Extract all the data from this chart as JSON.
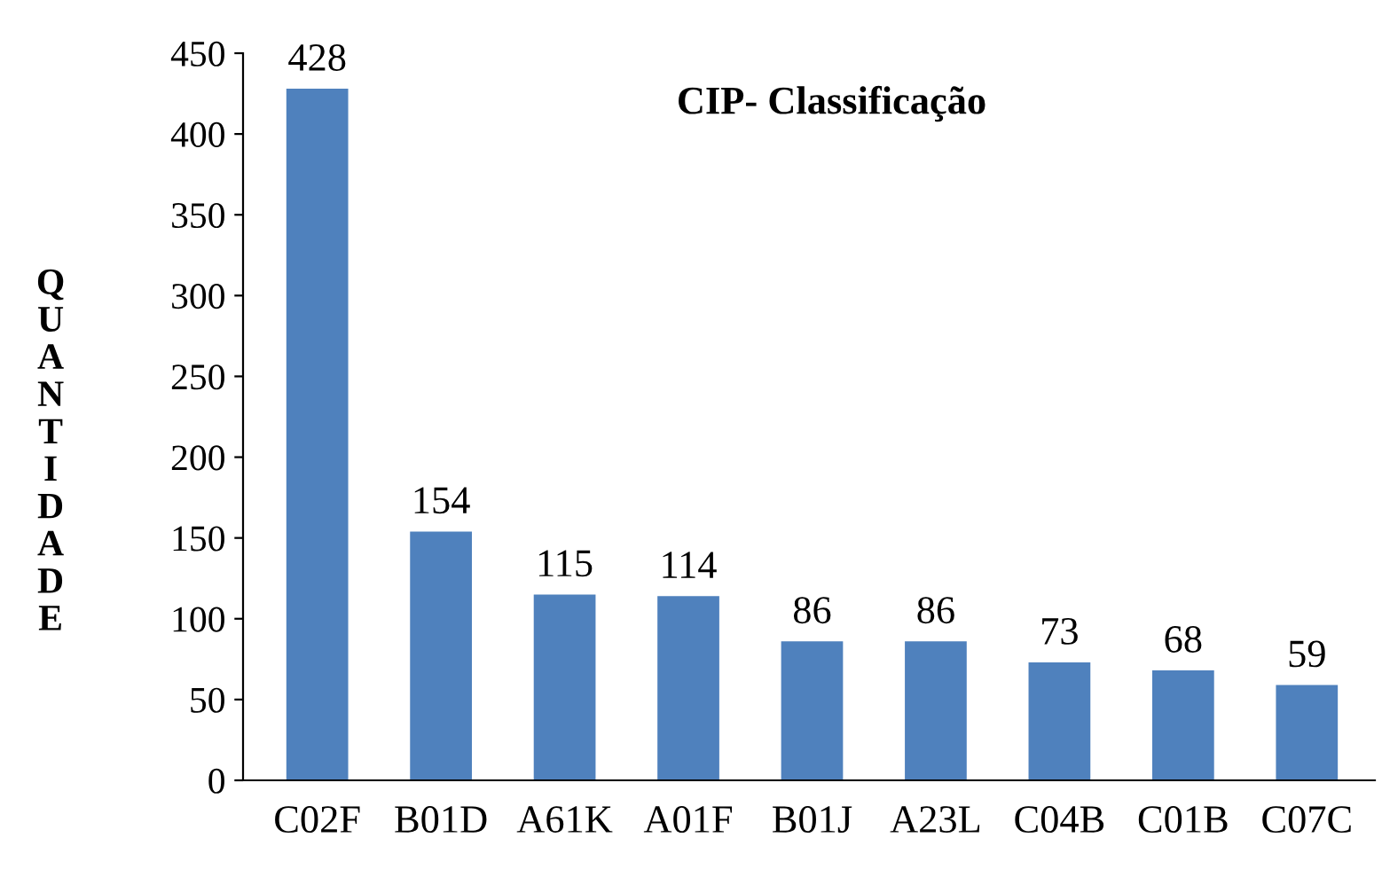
{
  "chart_data": {
    "type": "bar",
    "title": "CIP- Classificação",
    "ylabel": "QUANTIDADE",
    "categories": [
      "C02F",
      "B01D",
      "A61K",
      "A01F",
      "B01J",
      "A23L",
      "C04B",
      "C01B",
      "C07C"
    ],
    "values": [
      428,
      154,
      115,
      114,
      86,
      86,
      73,
      68,
      59
    ],
    "color": "#4f81bd",
    "ylim": [
      0,
      450
    ],
    "yticks": [
      0,
      50,
      100,
      150,
      200,
      250,
      300,
      350,
      400,
      450
    ],
    "data_labels": true,
    "grid": false,
    "legend": false
  }
}
